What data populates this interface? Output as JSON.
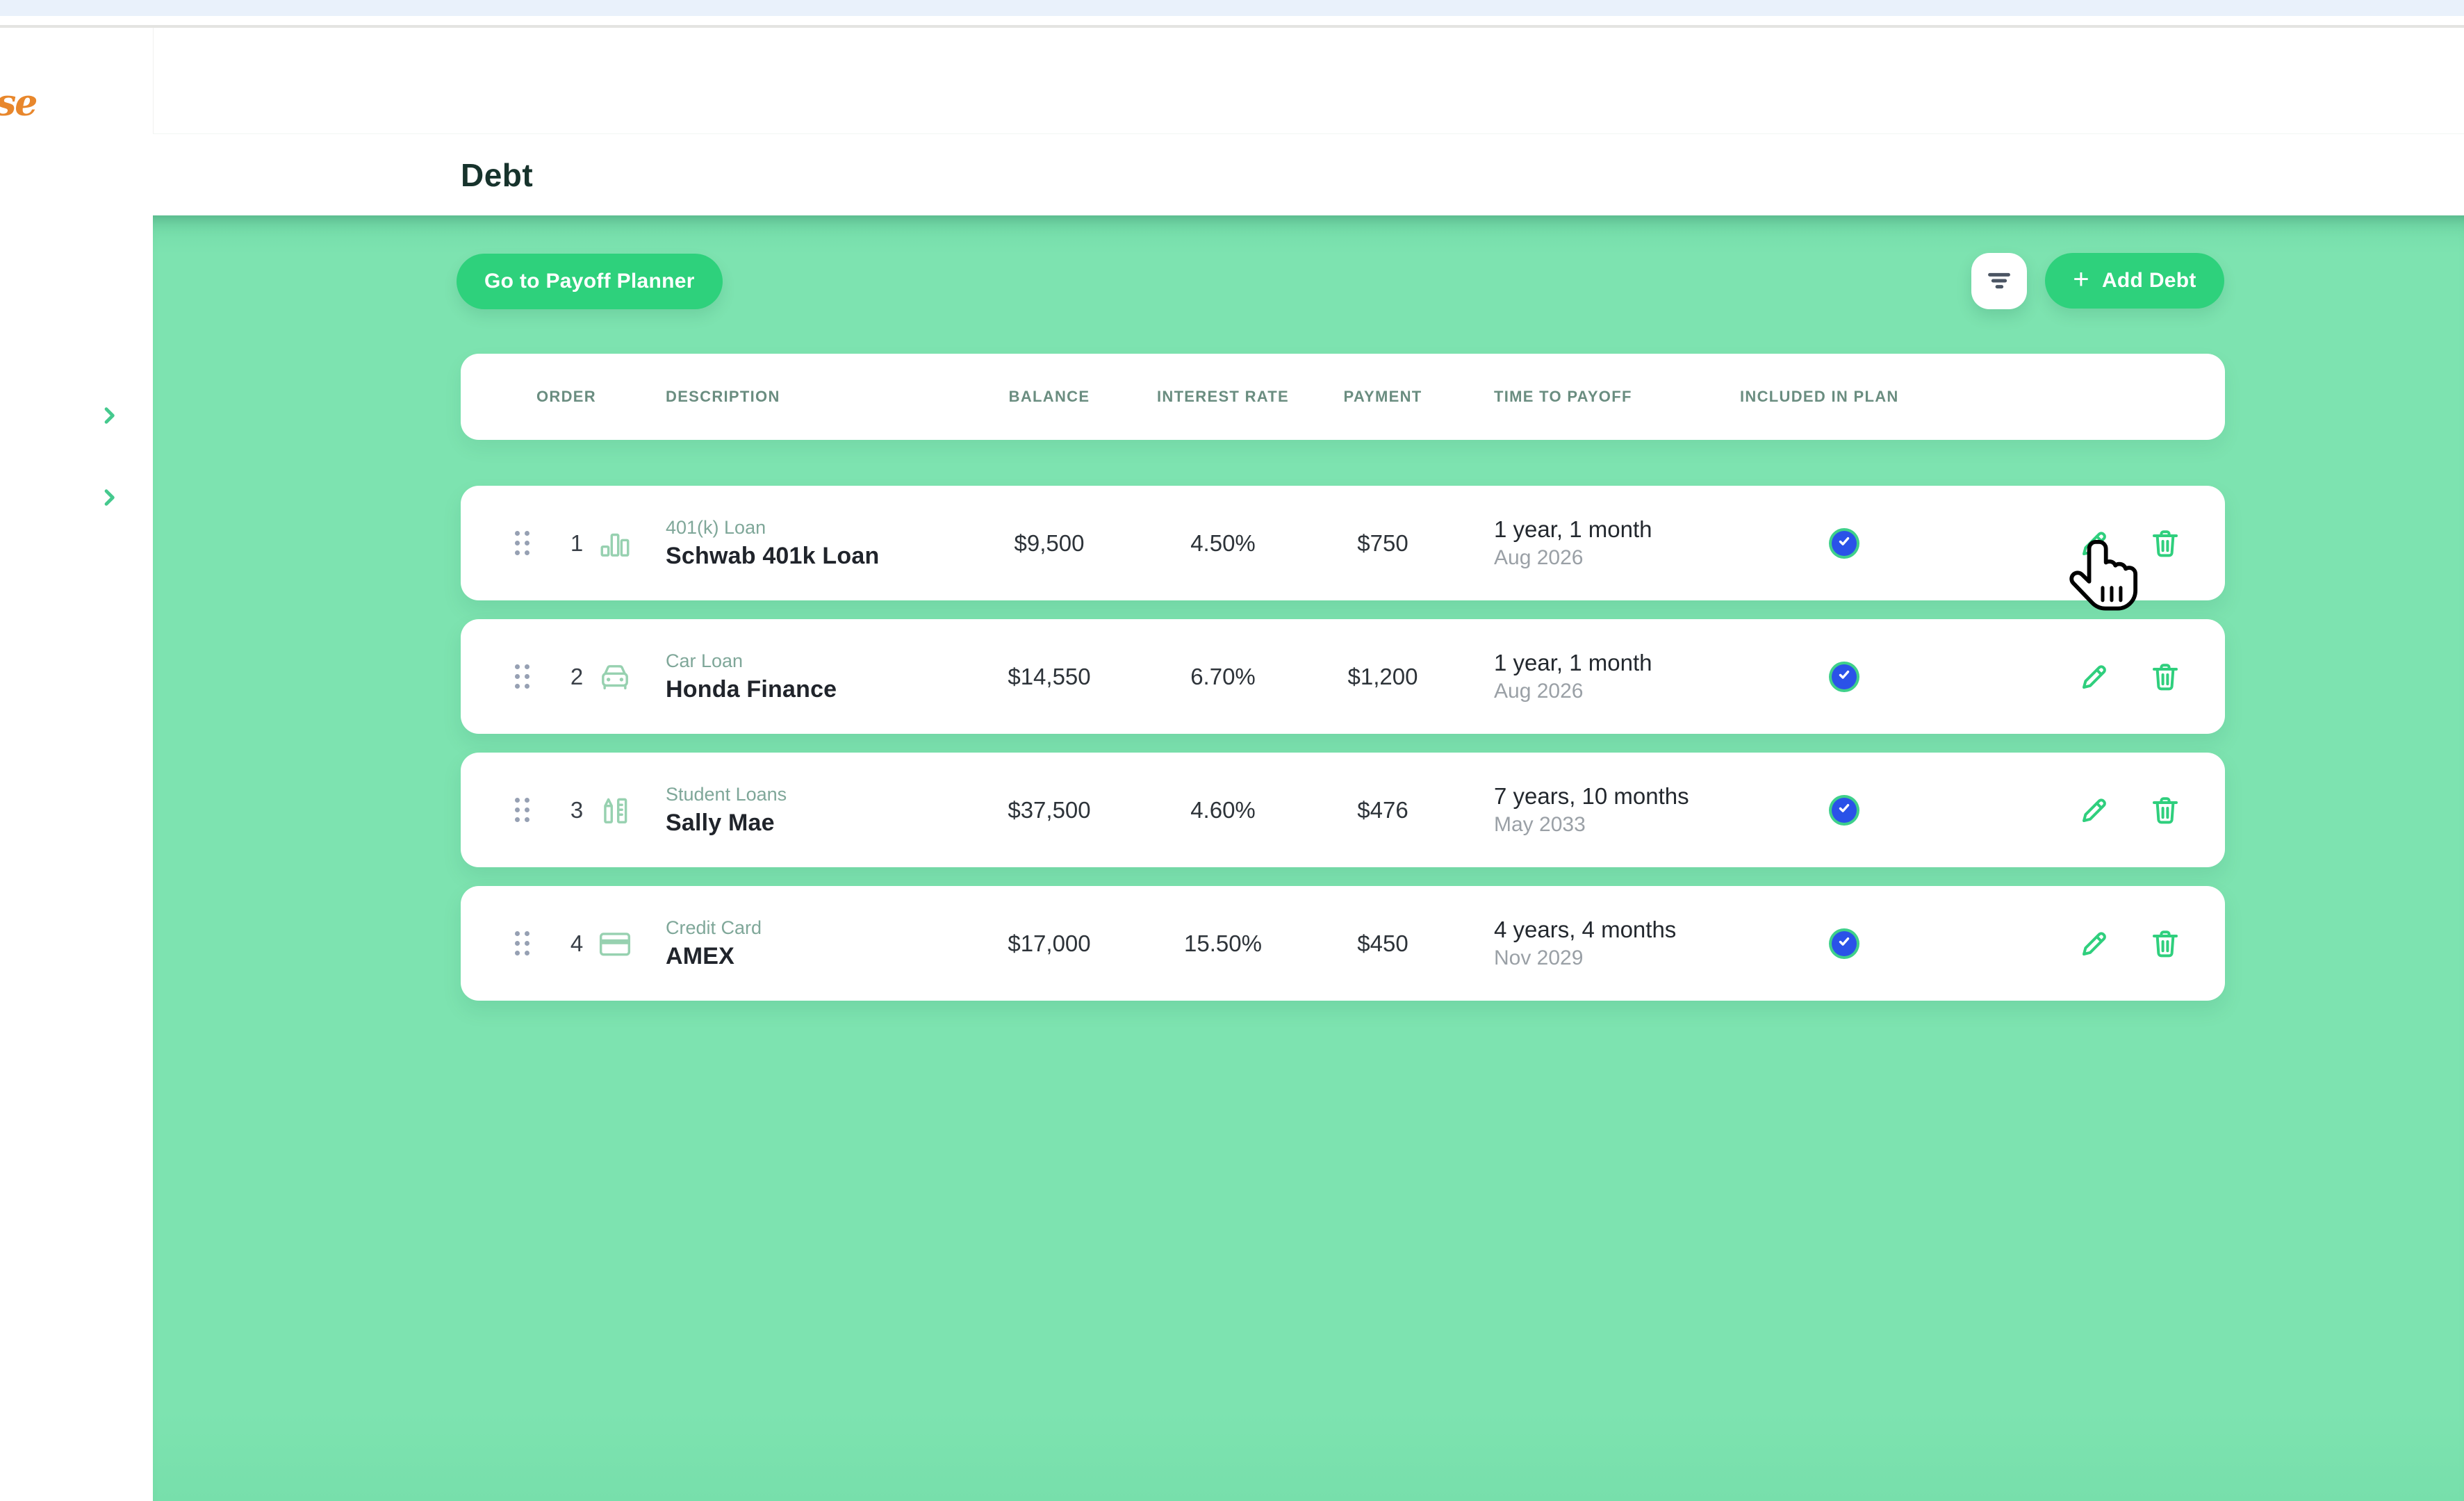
{
  "chrome": {
    "top_strip_color": "#e9f1fb"
  },
  "sidebar": {
    "logo_fragment": "se",
    "collapse_toggles": [
      {
        "icon": "chevron-right"
      },
      {
        "icon": "chevron-right"
      }
    ]
  },
  "topbar": {
    "avatar_icon": "user-avatar",
    "menu_icon": "chevron-down"
  },
  "header": {
    "title": "Debt"
  },
  "toolbar": {
    "payoff_button": "Go to Payoff Planner",
    "filter_icon": "filter",
    "add_debt_plus": "+",
    "add_debt_label": "Add Debt"
  },
  "table": {
    "columns": [
      "ORDER",
      "DESCRIPTION",
      "BALANCE",
      "INTEREST RATE",
      "PAYMENT",
      "TIME TO PAYOFF",
      "INCLUDED IN PLAN"
    ],
    "rows": [
      {
        "order": "1",
        "type": "401(k) Loan",
        "name": "Schwab 401k Loan",
        "icon": "bar-chart",
        "balance": "$9,500",
        "interest_rate": "4.50%",
        "payment": "$750",
        "time_to_payoff": "1 year, 1 month",
        "payoff_date": "Aug 2026",
        "included": true
      },
      {
        "order": "2",
        "type": "Car Loan",
        "name": "Honda Finance",
        "icon": "car",
        "balance": "$14,550",
        "interest_rate": "6.70%",
        "payment": "$1,200",
        "time_to_payoff": "1 year, 1 month",
        "payoff_date": "Aug 2026",
        "included": true
      },
      {
        "order": "3",
        "type": "Student Loans",
        "name": "Sally Mae",
        "icon": "education",
        "balance": "$37,500",
        "interest_rate": "4.60%",
        "payment": "$476",
        "time_to_payoff": "7 years, 10 months",
        "payoff_date": "May 2033",
        "included": true
      },
      {
        "order": "4",
        "type": "Credit Card",
        "name": "AMEX",
        "icon": "credit-card",
        "balance": "$17,000",
        "interest_rate": "15.50%",
        "payment": "$450",
        "time_to_payoff": "4 years, 4 months",
        "payoff_date": "Nov 2029",
        "included": true
      }
    ]
  },
  "colors": {
    "content_background": "#7de3b0",
    "primary_button": "#2ed17c",
    "checkbox_fill": "#2a52e8",
    "checkbox_ring": "#3fd08b",
    "logo_orange": "#e8872c"
  }
}
